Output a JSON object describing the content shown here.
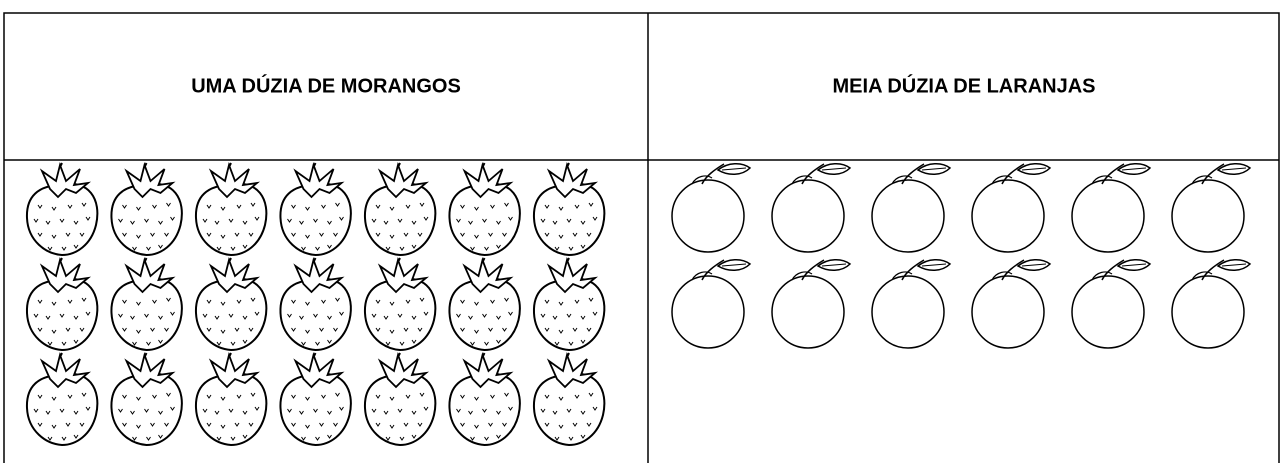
{
  "table": {
    "headers": [
      "UMA DÚZIA DE MORANGOS",
      "MEIA DÚZIA DE LARANJAS"
    ]
  }
}
